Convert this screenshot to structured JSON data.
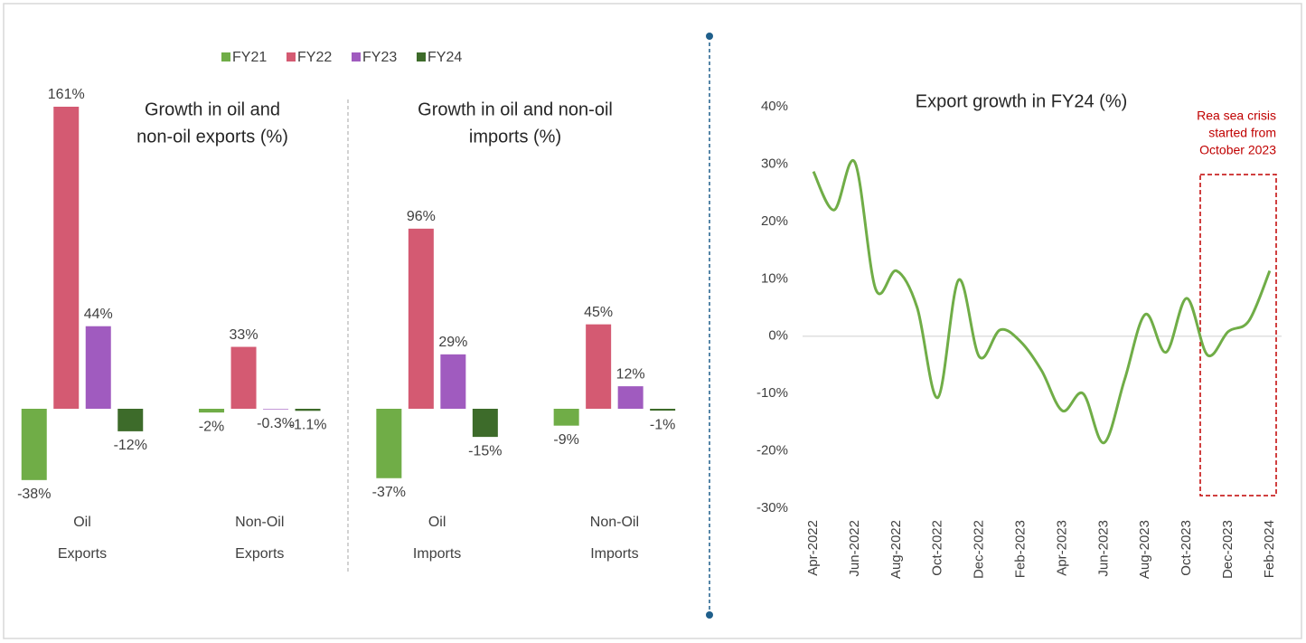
{
  "chart_data": [
    {
      "type": "bar",
      "legend_position": "top",
      "titles": [
        [
          "Growth in oil and",
          "non-oil exports (%)"
        ],
        [
          "Growth in oil and non-oil",
          "imports (%)"
        ]
      ],
      "categories": [
        "Oil",
        "Non-Oil",
        "Oil",
        "Non-Oil"
      ],
      "groups": [
        "Exports",
        "Exports",
        "Imports",
        "Imports"
      ],
      "series": [
        {
          "name": "FY21",
          "color": "#70ad47",
          "values": [
            -38,
            -2,
            -37,
            -9
          ],
          "value_labels": [
            "-38%",
            "-2%",
            "-37%",
            "-9%"
          ]
        },
        {
          "name": "FY22",
          "color": "#d45a72",
          "values": [
            161,
            33,
            96,
            45
          ],
          "value_labels": [
            "161%",
            "33%",
            "96%",
            "45%"
          ]
        },
        {
          "name": "FY23",
          "color": "#a05bbf",
          "values": [
            44,
            -0.3,
            29,
            12
          ],
          "value_labels": [
            "44%",
            "-0.3%",
            "29%",
            "12%"
          ]
        },
        {
          "name": "FY24",
          "color": "#3d6b2a",
          "values": [
            -12,
            -1.1,
            -15,
            -1
          ],
          "value_labels": [
            "-12%",
            "-1.1%",
            "-15%",
            "-1%"
          ]
        }
      ]
    },
    {
      "type": "line",
      "title": "Export growth in FY24 (%)",
      "categories": [
        "Apr-2022",
        null,
        "Jun-2022",
        null,
        "Aug-2022",
        null,
        "Oct-2022",
        null,
        "Dec-2022",
        null,
        "Feb-2023",
        null,
        "Apr-2023",
        null,
        "Jun-2023",
        null,
        "Aug-2023",
        null,
        "Oct-2023",
        null,
        "Dec-2023",
        null,
        "Feb-2024"
      ],
      "series": [
        {
          "color": "#70ad47",
          "values": [
            28.7,
            22,
            30.3,
            8.2,
            11.4,
            5,
            -10.7,
            9.8,
            -3.6,
            1.1,
            -1,
            -6,
            -13,
            -10,
            -18.6,
            -7.6,
            3.8,
            -2.8,
            6.6,
            -3.3,
            0.8,
            2.7,
            11.4
          ]
        }
      ],
      "ylim": [
        -30,
        40
      ],
      "yticks": [
        {
          "value": -30,
          "label": "-30%"
        },
        {
          "value": -20,
          "label": "-20%"
        },
        {
          "value": -10,
          "label": "-10%"
        },
        {
          "value": 0,
          "label": "0%"
        },
        {
          "value": 10,
          "label": "10%"
        },
        {
          "value": 20,
          "label": "20%"
        },
        {
          "value": 30,
          "label": "30%"
        },
        {
          "value": 40,
          "label": "40%"
        }
      ],
      "annotation": [
        "Rea sea crisis",
        "started from",
        "October 2023"
      ],
      "annotation_color": "#c00000"
    }
  ]
}
